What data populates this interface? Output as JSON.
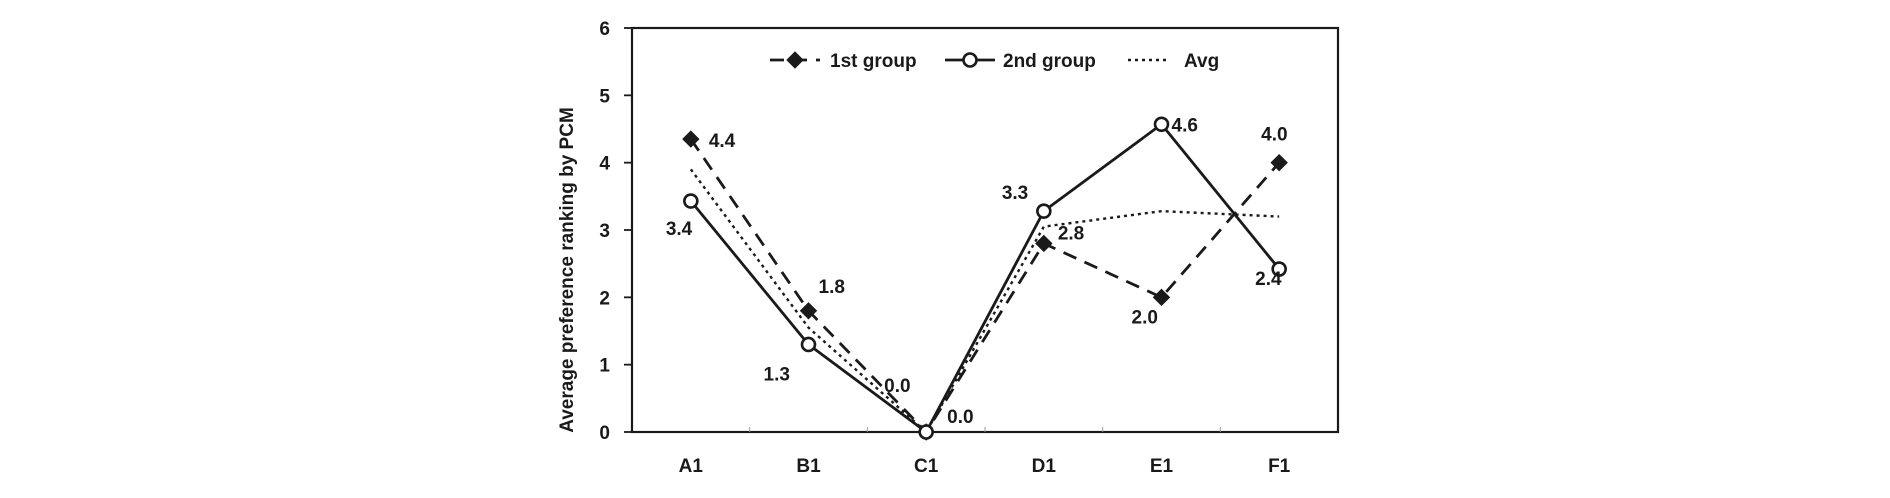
{
  "chart_data": {
    "type": "line",
    "title": "",
    "xlabel": "",
    "ylabel": "Average preference ranking by PCM",
    "ylim": [
      0,
      6
    ],
    "yticks": [
      0,
      1,
      2,
      3,
      4,
      5,
      6
    ],
    "categories": [
      "A1",
      "B1",
      "C1",
      "D1",
      "E1",
      "F1"
    ],
    "legend_position": "top",
    "grid": false,
    "series": [
      {
        "name": "1st group",
        "values": [
          4.35,
          1.8,
          0.0,
          2.8,
          2.0,
          4.0
        ],
        "data_labels": [
          "4.4",
          "1.8",
          "0.0",
          "2.8",
          "2.0",
          "4.0"
        ],
        "style": "dashed",
        "marker": "filled-diamond",
        "color": "#1a1a1a"
      },
      {
        "name": "2nd group",
        "values": [
          3.43,
          1.3,
          0.0,
          3.28,
          4.57,
          2.42
        ],
        "data_labels": [
          "3.4",
          "1.3",
          "0.0",
          "3.3",
          "4.6",
          "2.4"
        ],
        "style": "solid",
        "marker": "open-circle",
        "color": "#1a1a1a"
      },
      {
        "name": "Avg",
        "values": [
          3.9,
          1.55,
          0.0,
          3.05,
          3.28,
          3.2
        ],
        "style": "dotted",
        "marker": "none",
        "color": "#1a1a1a"
      }
    ]
  }
}
